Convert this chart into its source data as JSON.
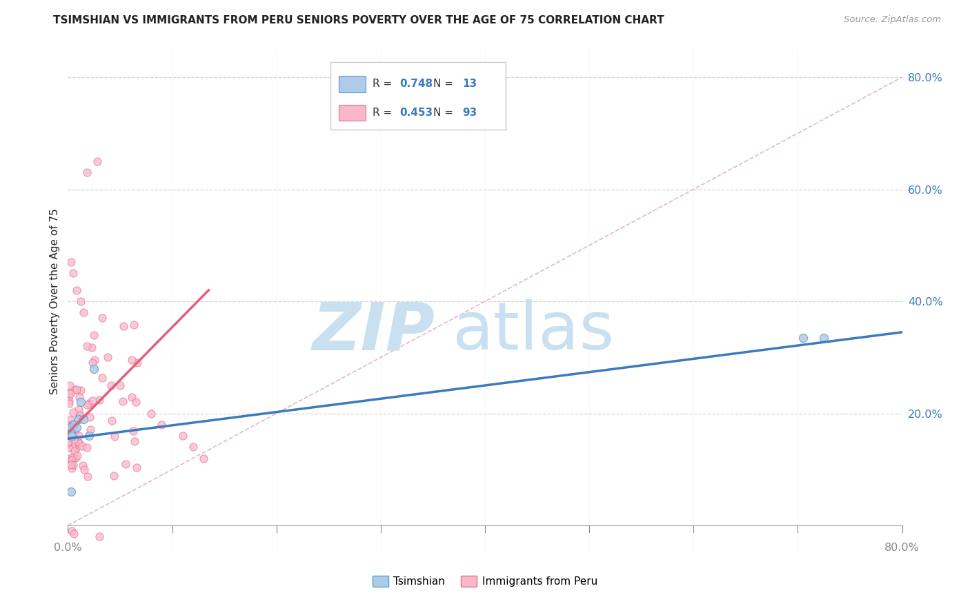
{
  "title": "TSIMSHIAN VS IMMIGRANTS FROM PERU SENIORS POVERTY OVER THE AGE OF 75 CORRELATION CHART",
  "source": "Source: ZipAtlas.com",
  "ylabel": "Seniors Poverty Over the Age of 75",
  "xlim": [
    0.0,
    0.8
  ],
  "ylim": [
    -0.05,
    0.85
  ],
  "grid_yticks": [
    0.0,
    0.2,
    0.4,
    0.6,
    0.8
  ],
  "grid_xticks": [
    0.0,
    0.1,
    0.2,
    0.3,
    0.4,
    0.5,
    0.6,
    0.7,
    0.8
  ],
  "yticklabels": [
    "",
    "20.0%",
    "40.0%",
    "60.0%",
    "80.0%"
  ],
  "x_left_label": "0.0%",
  "x_right_label": "80.0%",
  "tsimshian": {
    "name": "Tsimshian",
    "R": "0.748",
    "N": "13",
    "color": "#aecce8",
    "edge_color": "#5b9bd5",
    "marker_size": 75,
    "x": [
      0.002,
      0.003,
      0.004,
      0.006,
      0.008,
      0.01,
      0.012,
      0.015,
      0.02,
      0.025,
      0.705,
      0.725,
      0.003
    ],
    "y": [
      0.175,
      0.165,
      0.16,
      0.18,
      0.175,
      0.19,
      0.22,
      0.19,
      0.16,
      0.28,
      0.335,
      0.335,
      0.06
    ],
    "trend_x": [
      0.0,
      0.8
    ],
    "trend_y": [
      0.155,
      0.345
    ],
    "trend_color": "#3a7abf"
  },
  "peru": {
    "name": "Immigrants from Peru",
    "R": "0.453",
    "N": "93",
    "color": "#f9b8ca",
    "edge_color": "#e8708a",
    "marker_size": 65,
    "trend_x": [
      0.0,
      0.135
    ],
    "trend_y": [
      0.165,
      0.42
    ],
    "trend_color": "#e0607a"
  },
  "diag_color": "#e0b0c0",
  "diag_style": "--",
  "grid_color": "#d0d0d0",
  "bg_color": "#ffffff",
  "watermark_zip_color": "#c8e0f0",
  "watermark_atlas_color": "#c8e0f0",
  "legend_box_edge": "#c8c8c8",
  "legend_R_N_color": "#3a7abf",
  "title_color": "#222222",
  "source_color": "#999999",
  "ytick_color": "#3a7abf",
  "xtick_color": "#888888"
}
